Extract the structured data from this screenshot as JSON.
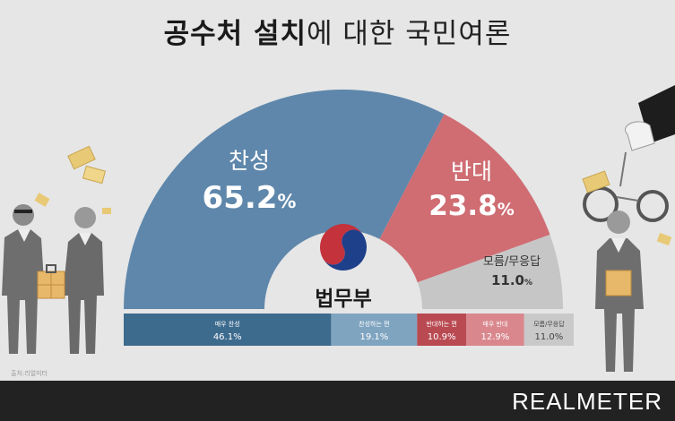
{
  "title": {
    "bold": "공수처 설치",
    "light": "에 대한 국민여론"
  },
  "brand": "REALMETER",
  "source": "출처:리얼미터",
  "center_label": "법무부",
  "colors": {
    "blue": "#5f87ab",
    "red": "#cf6d73",
    "gray": "#c6c6c6",
    "dark_blue": "#3d6b8e",
    "mid_blue": "#7fa4c0",
    "dark_red": "#b94a52",
    "light_red": "#d9878d",
    "light_gray": "#c9c9c9"
  },
  "chart_data": [
    {
      "type": "pie",
      "title": "공수처 설치에 대한 국민여론",
      "categories": [
        "찬성",
        "반대",
        "모름/무응답"
      ],
      "values": [
        65.2,
        23.8,
        11.0
      ],
      "unit": "%"
    },
    {
      "type": "bar",
      "categories": [
        "매우 찬성",
        "찬성하는 편",
        "반대하는 편",
        "매우 반대",
        "모름/무응답"
      ],
      "values": [
        46.1,
        19.1,
        10.9,
        12.9,
        11.0
      ],
      "unit": "%"
    }
  ]
}
